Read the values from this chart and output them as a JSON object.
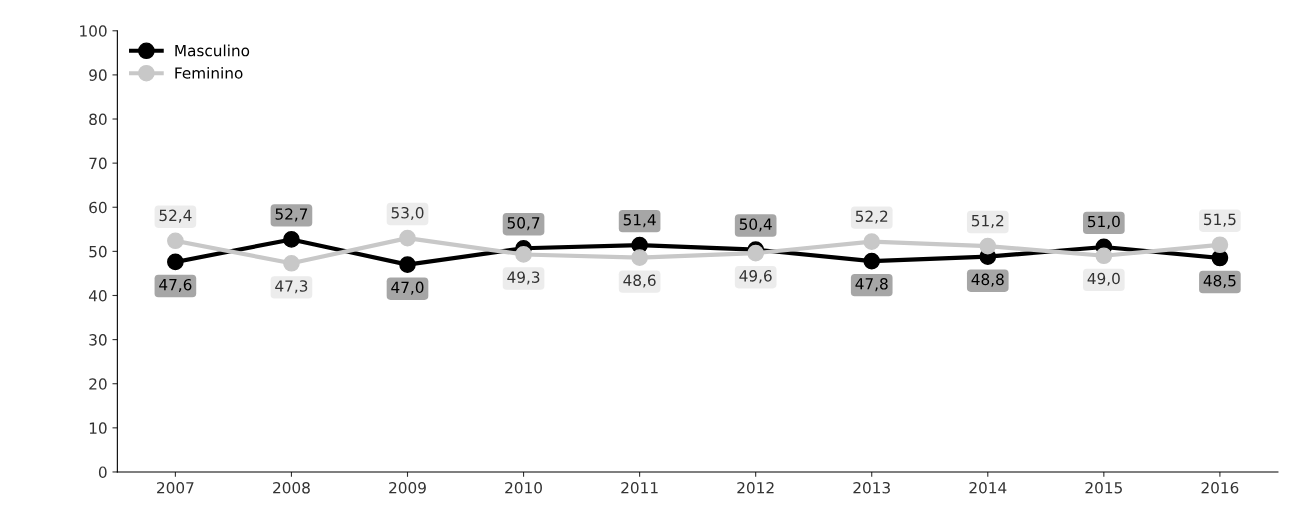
{
  "chart_data": {
    "type": "line",
    "categories": [
      "2007",
      "2008",
      "2009",
      "2010",
      "2011",
      "2012",
      "2013",
      "2014",
      "2015",
      "2016"
    ],
    "series": [
      {
        "name": "Masculino",
        "color": "#000000",
        "values": [
          47.6,
          52.7,
          47.0,
          50.7,
          51.4,
          50.4,
          47.8,
          48.8,
          51.0,
          48.5
        ],
        "value_labels": [
          "47,6",
          "52,7",
          "47,0",
          "50,7",
          "51,4",
          "50,4",
          "47,8",
          "48,8",
          "51,0",
          "48,5"
        ]
      },
      {
        "name": "Feminino",
        "color": "#c8c8c8",
        "values": [
          52.4,
          47.3,
          53.0,
          49.3,
          48.6,
          49.6,
          52.2,
          51.2,
          49.0,
          51.5
        ],
        "value_labels": [
          "52,4",
          "47,3",
          "53,0",
          "49,3",
          "48,6",
          "49,6",
          "52,2",
          "51,2",
          "49,0",
          "51,5"
        ]
      }
    ],
    "ylim": [
      0,
      100
    ],
    "yticks": [
      0,
      10,
      20,
      30,
      40,
      50,
      60,
      70,
      80,
      90,
      100
    ],
    "marker": "circle",
    "line_style": "solid",
    "grid": false,
    "legend": "top left"
  }
}
